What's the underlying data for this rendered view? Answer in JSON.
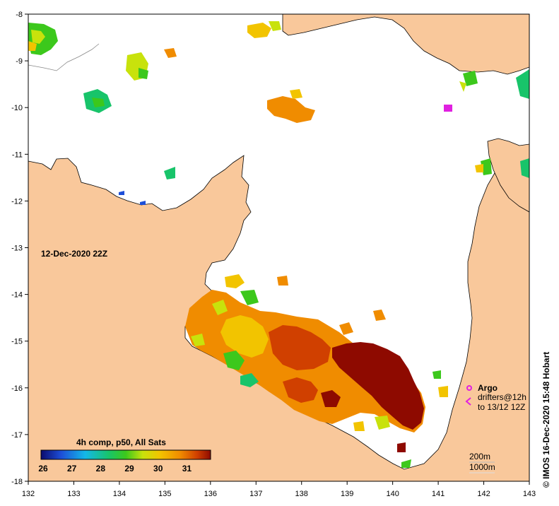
{
  "date_label": "12-Dec-2020 22Z",
  "colorbar": {
    "title": "4h comp, p50, All Sats",
    "ticks": [
      "26",
      "27",
      "28",
      "29",
      "30",
      "31"
    ],
    "min": 26,
    "max": 31.9
  },
  "legend": {
    "argo": "Argo",
    "drifters_line1": "drifters@12h",
    "drifters_line2": "to 13/12 12Z",
    "argo_color": "#e020e0"
  },
  "contours": {
    "c200": "200m",
    "c1000": "1000m"
  },
  "credit": "© IMOS 16-Dec-2020 15:48 Hobart",
  "axes": {
    "x_ticks": [
      "132",
      "133",
      "134",
      "135",
      "136",
      "137",
      "138",
      "139",
      "140",
      "141",
      "142",
      "143"
    ],
    "y_ticks": [
      "-8",
      "-9",
      "-10",
      "-11",
      "-12",
      "-13",
      "-14",
      "-15",
      "-16",
      "-17",
      "-18"
    ],
    "lon_range": [
      132,
      143
    ],
    "lat_range": [
      -18,
      -8
    ]
  },
  "colors": {
    "land": "#f9c89b",
    "water": "#ffffff"
  }
}
